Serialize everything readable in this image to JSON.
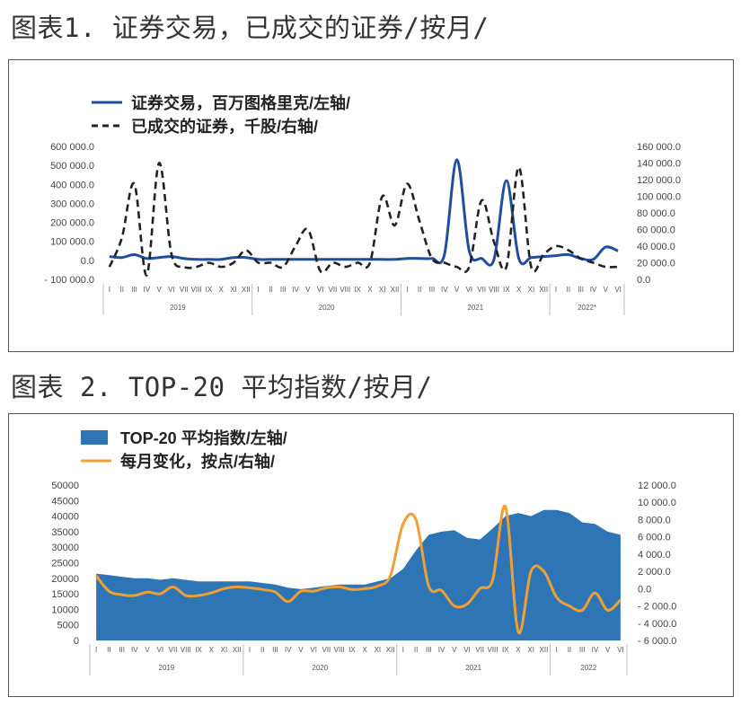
{
  "figure1": {
    "title": "图表1. 证券交易，已成交的证券/按月/",
    "legend": {
      "s1": "证券交易，百万图格里克/左轴/",
      "s2": "已成交的证券，千股/右轴/"
    }
  },
  "figure2": {
    "title": "图表 2. TOP-20 平均指数/按月/",
    "legend": {
      "s1": "TOP-20 平均指数/左轴/",
      "s2": "每月变化，按点/右轴/"
    }
  },
  "months_roman": [
    "I",
    "II",
    "III",
    "IV",
    "V",
    "VI",
    "VII",
    "VIII",
    "IX",
    "X",
    "XI",
    "XII"
  ],
  "chart_data": [
    {
      "type": "line",
      "title": "证券交易，已成交的证券/按月/",
      "x_years": [
        "2019",
        "2020",
        "2021",
        "2022*"
      ],
      "x_months": [
        "I",
        "II",
        "III",
        "IV",
        "V",
        "VI",
        "VII",
        "VIII",
        "IX",
        "X",
        "XI",
        "XII",
        "I",
        "II",
        "III",
        "IV",
        "V",
        "VI",
        "VII",
        "VIII",
        "IX",
        "X",
        "XI",
        "XII",
        "I",
        "II",
        "III",
        "IV",
        "V",
        "VI",
        "VII",
        "VIII",
        "IX",
        "X",
        "XI",
        "XII",
        "I",
        "II",
        "III",
        "IV",
        "V",
        "VI"
      ],
      "y_left": {
        "ticks": [
          "- 100 000.0",
          "0.0",
          "100 000.0",
          "200 000.0",
          "300 000.0",
          "400 000.0",
          "500 000.0",
          "600 000.0"
        ],
        "range": [
          -100000,
          600000
        ]
      },
      "y_right": {
        "ticks": [
          "0.0",
          "20 000.0",
          "40 000.0",
          "60 000.0",
          "80 000.0",
          "100 000.0",
          "120 000.0",
          "140 000.0",
          "160 000.0"
        ],
        "range": [
          0,
          160000
        ]
      },
      "series": [
        {
          "name": "证券交易，百万图格里克/左轴/",
          "axis": "left",
          "color": "#1f4e9e",
          "style": "solid",
          "values": [
            20000,
            15000,
            30000,
            10000,
            15000,
            20000,
            10000,
            5000,
            5000,
            5000,
            15000,
            15000,
            5000,
            5000,
            5000,
            5000,
            5000,
            5000,
            5000,
            5000,
            5000,
            5000,
            5000,
            5000,
            10000,
            10000,
            10000,
            30000,
            530000,
            50000,
            10000,
            5000,
            420000,
            10000,
            15000,
            20000,
            25000,
            30000,
            10000,
            5000,
            70000,
            50000
          ]
        },
        {
          "name": "已成交的证券，千股/右轴/",
          "axis": "right",
          "color": "#222222",
          "style": "dashed",
          "values": [
            15000,
            50000,
            115000,
            5000,
            140000,
            30000,
            15000,
            15000,
            20000,
            15000,
            20000,
            35000,
            20000,
            20000,
            15000,
            40000,
            60000,
            10000,
            20000,
            15000,
            20000,
            20000,
            100000,
            65000,
            115000,
            70000,
            25000,
            20000,
            15000,
            15000,
            95000,
            45000,
            15000,
            135000,
            15000,
            30000,
            40000,
            35000,
            25000,
            20000,
            15000,
            15000
          ]
        }
      ]
    },
    {
      "type": "area",
      "title": "TOP-20 平均指数/按月/",
      "x_years": [
        "2019",
        "2020",
        "2021",
        "2022"
      ],
      "x_months": [
        "I",
        "II",
        "III",
        "IV",
        "V",
        "VI",
        "VII",
        "VIII",
        "IX",
        "X",
        "XI",
        "XII",
        "I",
        "II",
        "III",
        "IV",
        "V",
        "VI",
        "VII",
        "VIII",
        "IX",
        "X",
        "XI",
        "XII",
        "I",
        "II",
        "III",
        "IV",
        "V",
        "VI",
        "VII",
        "VIII",
        "IX",
        "X",
        "XI",
        "XII",
        "I",
        "II",
        "III",
        "IV",
        "V",
        "VI"
      ],
      "y_left": {
        "ticks": [
          "0",
          "5000",
          "10000",
          "15000",
          "20000",
          "25000",
          "30000",
          "35000",
          "40000",
          "45000",
          "50000"
        ],
        "range": [
          0,
          50000
        ]
      },
      "y_right": {
        "ticks": [
          "- 6 000.0",
          "- 4 000.0",
          "- 2 000.0",
          "0.0",
          "2 000.0",
          "4 000.0",
          "6 000.0",
          "8 000.0",
          "10 000.0",
          "12 000.0"
        ],
        "range": [
          -6000,
          12000
        ]
      },
      "series": [
        {
          "name": "TOP-20 平均指数/左轴/",
          "axis": "left",
          "type": "area",
          "color": "#2e75b6",
          "values": [
            21500,
            21000,
            20500,
            20000,
            20000,
            19500,
            20000,
            19500,
            19000,
            19000,
            19000,
            19000,
            19000,
            18500,
            18000,
            17000,
            16500,
            17000,
            17500,
            18000,
            18000,
            18000,
            19000,
            20000,
            23000,
            29000,
            34000,
            35000,
            35500,
            33000,
            32500,
            36000,
            40000,
            41000,
            40000,
            42000,
            42000,
            41000,
            38000,
            37500,
            35000,
            34000
          ]
        },
        {
          "name": "每月变化，按点/右轴/",
          "axis": "right",
          "type": "line",
          "color": "#f0a030",
          "values": [
            1500,
            -300,
            -700,
            -800,
            -400,
            -600,
            200,
            -800,
            -800,
            -500,
            0,
            200,
            100,
            -100,
            -400,
            -1500,
            -300,
            -300,
            100,
            200,
            -100,
            0,
            300,
            1500,
            7500,
            8000,
            300,
            -200,
            -2000,
            -1800,
            0,
            1000,
            9500,
            -5000,
            2000,
            2000,
            -1000,
            -2000,
            -2500,
            -500,
            -2500,
            -1300
          ]
        }
      ]
    }
  ]
}
